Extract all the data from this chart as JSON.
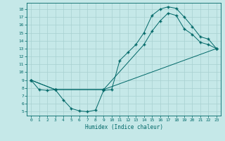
{
  "xlabel": "Humidex (Indice chaleur)",
  "bg_color": "#c5e8e8",
  "grid_color": "#a8d0d0",
  "line_color": "#006868",
  "xlim": [
    -0.5,
    23.5
  ],
  "ylim": [
    4.5,
    18.8
  ],
  "xticks": [
    0,
    1,
    2,
    3,
    4,
    5,
    6,
    7,
    8,
    9,
    10,
    11,
    12,
    13,
    14,
    15,
    16,
    17,
    18,
    19,
    20,
    21,
    22,
    23
  ],
  "yticks": [
    5,
    6,
    7,
    8,
    9,
    10,
    11,
    12,
    13,
    14,
    15,
    16,
    17,
    18
  ],
  "line1_x": [
    0,
    1,
    2,
    3,
    4,
    5,
    6,
    7,
    8,
    9,
    10,
    11,
    12,
    13,
    14,
    15,
    16,
    17,
    18,
    19,
    20,
    21,
    22,
    23
  ],
  "line1_y": [
    9.0,
    7.8,
    7.7,
    7.8,
    6.5,
    5.4,
    5.1,
    5.0,
    5.2,
    7.7,
    7.8,
    11.5,
    12.5,
    13.5,
    15.0,
    17.2,
    18.0,
    18.3,
    18.1,
    17.0,
    15.8,
    14.5,
    14.2,
    13.0
  ],
  "line2_x": [
    0,
    3,
    9,
    23
  ],
  "line2_y": [
    9.0,
    7.8,
    7.8,
    13.0
  ],
  "line3_x": [
    0,
    3,
    9,
    14,
    15,
    16,
    17,
    18,
    19,
    20,
    21,
    22,
    23
  ],
  "line3_y": [
    9.0,
    7.8,
    7.8,
    13.5,
    15.2,
    16.5,
    17.5,
    17.2,
    15.5,
    14.8,
    13.8,
    13.5,
    13.0
  ]
}
